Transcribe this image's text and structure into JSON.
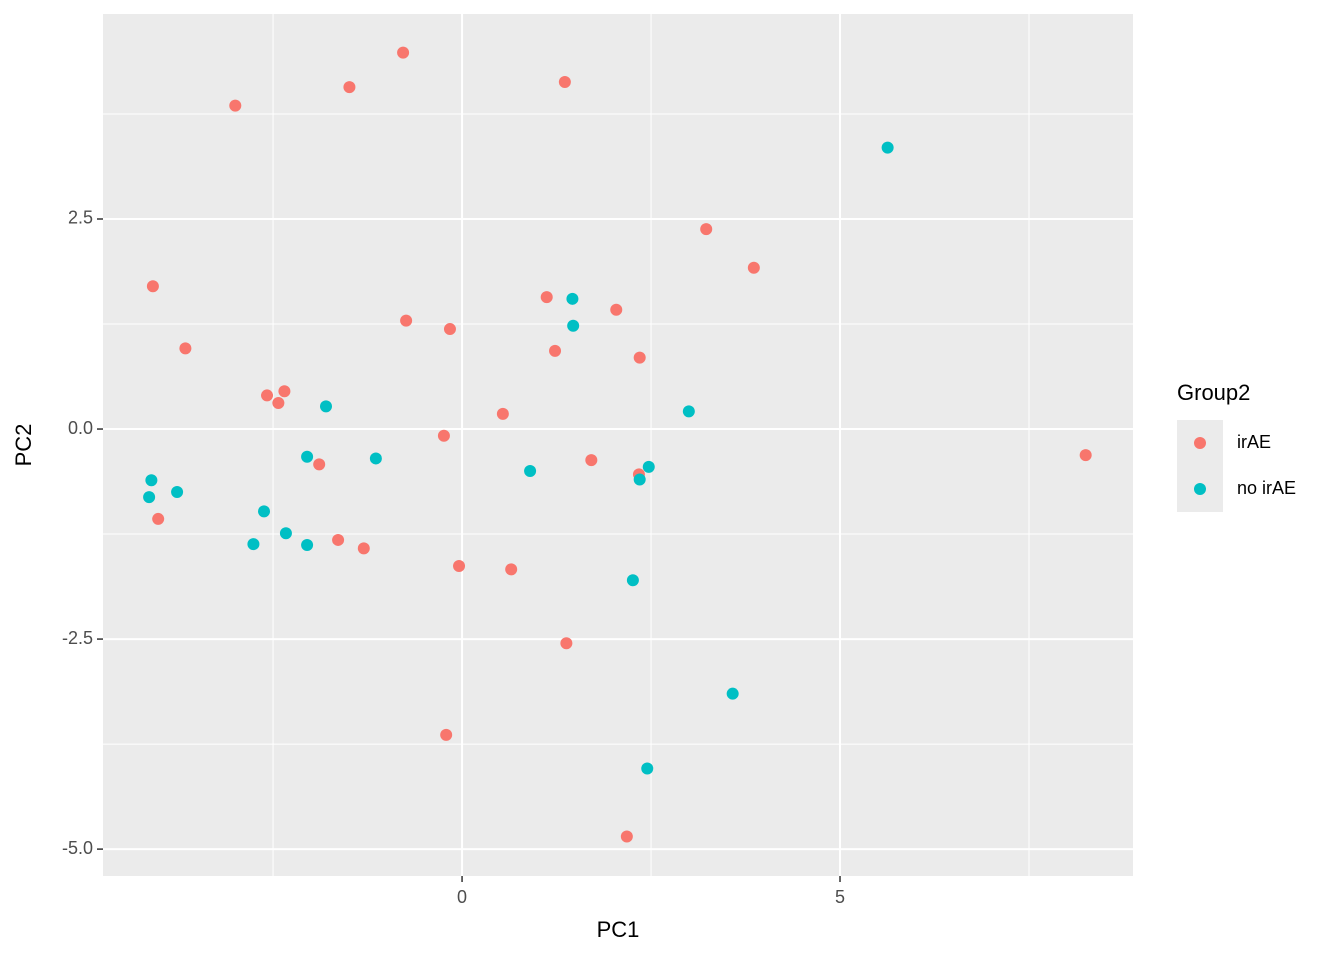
{
  "chart_data": {
    "type": "scatter",
    "xlabel": "PC1",
    "ylabel": "PC2",
    "legend_title": "Group2",
    "legend": "right",
    "grid": true,
    "xlim": [
      -4.75,
      8.876
    ],
    "ylim": [
      -5.32,
      4.94
    ],
    "xticks": [
      0,
      5
    ],
    "yticks": [
      {
        "value": -5,
        "label": "-5.0"
      },
      -2.5,
      {
        "value": 0,
        "label": "0.0"
      },
      2.5
    ],
    "series": [
      {
        "name": "irAE",
        "color": "#F8766D",
        "x": [
          -0.78,
          -1.49,
          -3.0,
          1.36,
          3.23,
          3.86,
          -4.09,
          -3.66,
          1.12,
          2.04,
          -0.74,
          -0.16,
          1.23,
          2.35,
          -2.58,
          -2.35,
          -2.43,
          0.54,
          -0.24,
          -1.89,
          1.71,
          2.34,
          8.25,
          -4.02,
          -1.64,
          -1.3,
          -0.04,
          0.65,
          1.38,
          -0.21,
          2.18
        ],
        "y": [
          4.48,
          4.07,
          3.85,
          4.13,
          2.38,
          1.92,
          1.7,
          0.96,
          1.57,
          1.42,
          1.29,
          1.19,
          0.93,
          0.85,
          0.4,
          0.45,
          0.31,
          0.18,
          -0.08,
          -0.42,
          -0.37,
          -0.54,
          -0.31,
          -1.07,
          -1.32,
          -1.42,
          -1.63,
          -1.67,
          -2.55,
          -3.64,
          -4.85
        ]
      },
      {
        "name": "no irAE",
        "color": "#00BFC4",
        "x": [
          5.63,
          1.46,
          1.47,
          3.0,
          -1.8,
          -2.05,
          -1.14,
          0.9,
          2.47,
          2.35,
          -4.11,
          -3.77,
          -4.14,
          -2.62,
          -2.33,
          -2.76,
          -2.05,
          2.26,
          3.58,
          2.45
        ],
        "y": [
          3.35,
          1.55,
          1.23,
          0.21,
          0.27,
          -0.33,
          -0.35,
          -0.5,
          -0.45,
          -0.6,
          -0.61,
          -0.75,
          -0.81,
          -0.98,
          -1.24,
          -1.37,
          -1.38,
          -1.8,
          -3.15,
          -4.04
        ]
      }
    ]
  }
}
